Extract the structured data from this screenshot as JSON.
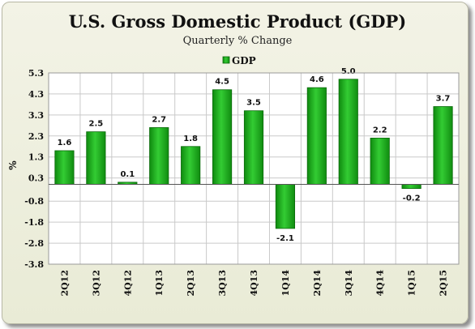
{
  "chart_data": {
    "type": "bar",
    "title": "U.S. Gross Domestic Product (GDP)",
    "subtitle": "Quarterly % Change",
    "ylabel": "%",
    "xlabel": "",
    "legend_position": "top-center",
    "grid": true,
    "ylim": [
      -3.8,
      5.3
    ],
    "yticks": [
      "5.3",
      "4.3",
      "3.3",
      "2.3",
      "1.3",
      "0.3",
      "-0.8",
      "-1.8",
      "-2.8",
      "-3.8"
    ],
    "categories": [
      "2Q12",
      "3Q12",
      "4Q12",
      "1Q13",
      "2Q13",
      "3Q13",
      "4Q13",
      "1Q14",
      "2Q14",
      "3Q14",
      "4Q14",
      "1Q15",
      "2Q15"
    ],
    "series": [
      {
        "name": "GDP",
        "color": "#22bb22",
        "values": [
          1.6,
          2.5,
          0.1,
          2.7,
          1.8,
          4.5,
          3.5,
          -2.1,
          4.6,
          5.0,
          2.2,
          -0.2,
          3.7
        ],
        "labels": [
          "1.6",
          "2.5",
          "0.1",
          "2.7",
          "1.8",
          "4.5",
          "3.5",
          "-2.1",
          "4.6",
          "5.0",
          "2.2",
          "-0.2",
          "3.7"
        ]
      }
    ]
  }
}
